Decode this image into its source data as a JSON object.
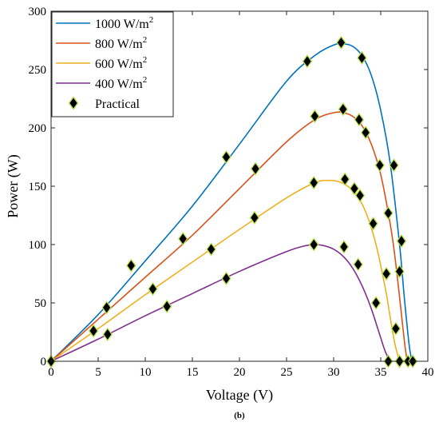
{
  "chart_data": {
    "type": "line",
    "xlabel": "Voltage (V)",
    "ylabel": "Power (W)",
    "caption": "(b)",
    "xlim": [
      0,
      40
    ],
    "ylim": [
      0,
      300
    ],
    "xticks": [
      "0",
      "5",
      "10",
      "15",
      "20",
      "25",
      "30",
      "35",
      "40"
    ],
    "yticks": [
      "0",
      "50",
      "100",
      "150",
      "200",
      "250",
      "300"
    ],
    "grid": false,
    "legend_position": "top-left",
    "series": [
      {
        "name": "1000 W/m",
        "superscript": "2",
        "color": "#0072BD",
        "x": [
          0,
          5,
          10,
          15,
          20,
          25,
          28,
          30,
          31,
          32,
          33,
          34,
          35,
          36,
          37,
          37.5,
          38,
          38.3
        ],
        "y": [
          0,
          40,
          86,
          133,
          186,
          240,
          262,
          271,
          272,
          270,
          262,
          245,
          215,
          170,
          100,
          55,
          15,
          0
        ]
      },
      {
        "name": "800 W/m",
        "superscript": "2",
        "color": "#D95319",
        "x": [
          0,
          5,
          10,
          15,
          20,
          25,
          28,
          30,
          31,
          32,
          33,
          34,
          35,
          36,
          36.5,
          37,
          37.5,
          37.8
        ],
        "y": [
          0,
          36,
          72,
          108,
          148,
          188,
          207,
          213,
          213,
          210,
          202,
          186,
          160,
          118,
          90,
          55,
          18,
          0
        ]
      },
      {
        "name": "600 W/m",
        "superscript": "2",
        "color": "#EDB120",
        "x": [
          0,
          5,
          10,
          15,
          20,
          25,
          28,
          29.5,
          30.5,
          31.5,
          32.5,
          33.5,
          34.5,
          35.5,
          36,
          36.5,
          37
        ],
        "y": [
          0,
          28,
          57,
          85,
          113,
          140,
          153,
          155,
          154,
          150,
          142,
          126,
          100,
          62,
          38,
          15,
          0
        ]
      },
      {
        "name": "400 W/m",
        "superscript": "2",
        "color": "#7E2F8E",
        "x": [
          0,
          5,
          10,
          15,
          20,
          25,
          27,
          28,
          29,
          30,
          31,
          32,
          33,
          34,
          35,
          35.5,
          36
        ],
        "y": [
          0,
          19,
          39,
          58,
          77,
          94,
          99,
          100,
          99,
          96,
          90,
          80,
          65,
          45,
          20,
          8,
          0
        ]
      }
    ],
    "practical": {
      "name": "Practical",
      "fill": "#000000",
      "edge": "#B8E04A",
      "points": [
        [
          0,
          0
        ],
        [
          4.5,
          26
        ],
        [
          6,
          23
        ],
        [
          5.9,
          46
        ],
        [
          8.5,
          82
        ],
        [
          10.8,
          62
        ],
        [
          12.3,
          47
        ],
        [
          14,
          105
        ],
        [
          17,
          96
        ],
        [
          18.6,
          71
        ],
        [
          18.6,
          175
        ],
        [
          21.6,
          123
        ],
        [
          21.7,
          165
        ],
        [
          27.2,
          257
        ],
        [
          27.9,
          100
        ],
        [
          27.9,
          153
        ],
        [
          28,
          210
        ],
        [
          30.8,
          273
        ],
        [
          31,
          216
        ],
        [
          31.1,
          98
        ],
        [
          31.2,
          156
        ],
        [
          32.2,
          148
        ],
        [
          32.6,
          83
        ],
        [
          32.7,
          207
        ],
        [
          32.8,
          142
        ],
        [
          33,
          260
        ],
        [
          33.4,
          196
        ],
        [
          34.2,
          118
        ],
        [
          34.5,
          50
        ],
        [
          34.9,
          168
        ],
        [
          35.6,
          75
        ],
        [
          35.8,
          127
        ],
        [
          35.8,
          0
        ],
        [
          36.4,
          168
        ],
        [
          36.6,
          28
        ],
        [
          37,
          77
        ],
        [
          37,
          0
        ],
        [
          37.2,
          103
        ],
        [
          37.9,
          0
        ],
        [
          38.4,
          0
        ]
      ]
    }
  }
}
